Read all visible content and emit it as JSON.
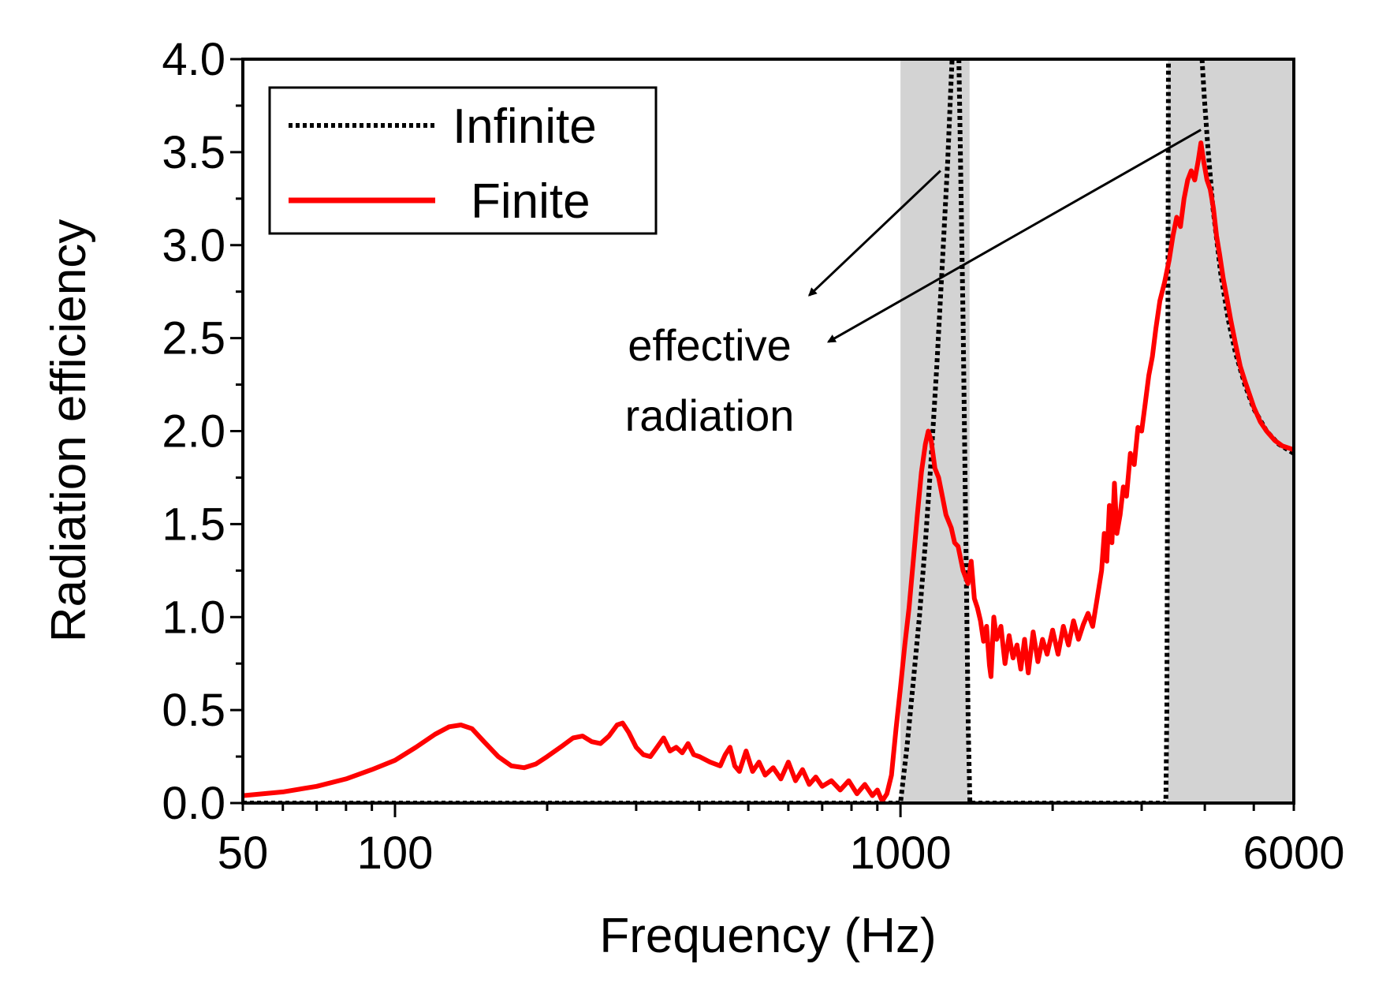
{
  "chart_data": {
    "type": "line",
    "title": "",
    "xlabel": "Frequency (Hz)",
    "ylabel": "Radiation efficiency",
    "xscale": "log",
    "xlim": [
      50,
      6000
    ],
    "ylim": [
      0,
      4.0
    ],
    "xticks": [
      {
        "value": 50,
        "label": "50"
      },
      {
        "value": 100,
        "label": "100"
      },
      {
        "value": 1000,
        "label": "1000"
      },
      {
        "value": 6000,
        "label": "6000"
      }
    ],
    "yticks": [
      {
        "value": 0.0,
        "label": "0.0"
      },
      {
        "value": 0.5,
        "label": "0.5"
      },
      {
        "value": 1.0,
        "label": "1.0"
      },
      {
        "value": 1.5,
        "label": "1.5"
      },
      {
        "value": 2.0,
        "label": "2.0"
      },
      {
        "value": 2.5,
        "label": "2.5"
      },
      {
        "value": 3.0,
        "label": "3.0"
      },
      {
        "value": 3.5,
        "label": "3.5"
      },
      {
        "value": 4.0,
        "label": "4.0"
      }
    ],
    "shaded_bands": [
      {
        "x0": 1000,
        "x1": 1370,
        "color": "#d3d3d3"
      },
      {
        "x0": 3380,
        "x1": 6000,
        "color": "#d3d3d3"
      }
    ],
    "legend": {
      "position": "top-left",
      "entries": [
        {
          "label": "Infinite",
          "series": "infinite"
        },
        {
          "label": "Finite",
          "series": "finite"
        }
      ]
    },
    "annotation": {
      "lines": [
        "effective",
        "radiation"
      ],
      "arrows": [
        {
          "from": [
            1200,
            3.4
          ],
          "to": [
            660,
            2.73
          ]
        },
        {
          "from": [
            3930,
            3.62
          ],
          "to": [
            720,
            2.48
          ]
        }
      ]
    },
    "series": [
      {
        "name": "Infinite",
        "id": "infinite",
        "color": "#000000",
        "style": "dotted",
        "segments": [
          [
            [
              50,
              0
            ],
            [
              1000,
              0
            ],
            [
              1030,
              0.3
            ],
            [
              1060,
              0.65
            ],
            [
              1090,
              1.0
            ],
            [
              1120,
              1.4
            ],
            [
              1150,
              1.85
            ],
            [
              1180,
              2.35
            ],
            [
              1210,
              2.9
            ],
            [
              1240,
              3.45
            ],
            [
              1260,
              3.9
            ],
            [
              1265,
              4.0
            ]
          ],
          [
            [
              1305,
              4.0
            ],
            [
              1330,
              2.6
            ],
            [
              1350,
              1.2
            ],
            [
              1362,
              0.4
            ],
            [
              1372,
              0
            ],
            [
              3350,
              0
            ],
            [
              3365,
              0.5
            ],
            [
              3378,
              2.0
            ],
            [
              3390,
              4.0
            ]
          ],
          [
            [
              3950,
              4.0
            ],
            [
              3990,
              3.8
            ],
            [
              4050,
              3.55
            ],
            [
              4150,
              3.2
            ],
            [
              4300,
              2.85
            ],
            [
              4450,
              2.6
            ],
            [
              4600,
              2.42
            ],
            [
              4800,
              2.25
            ],
            [
              5000,
              2.12
            ],
            [
              5300,
              2.0
            ],
            [
              5600,
              1.93
            ],
            [
              6000,
              1.88
            ]
          ]
        ]
      },
      {
        "name": "Finite",
        "id": "finite",
        "color": "#ff0000",
        "style": "solid",
        "points": [
          [
            50,
            0.04
          ],
          [
            60,
            0.06
          ],
          [
            70,
            0.09
          ],
          [
            80,
            0.13
          ],
          [
            90,
            0.18
          ],
          [
            100,
            0.23
          ],
          [
            110,
            0.3
          ],
          [
            120,
            0.37
          ],
          [
            128,
            0.41
          ],
          [
            135,
            0.42
          ],
          [
            142,
            0.4
          ],
          [
            150,
            0.33
          ],
          [
            160,
            0.25
          ],
          [
            170,
            0.2
          ],
          [
            180,
            0.19
          ],
          [
            190,
            0.21
          ],
          [
            200,
            0.25
          ],
          [
            215,
            0.31
          ],
          [
            225,
            0.35
          ],
          [
            235,
            0.36
          ],
          [
            245,
            0.33
          ],
          [
            255,
            0.32
          ],
          [
            265,
            0.36
          ],
          [
            275,
            0.42
          ],
          [
            282,
            0.43
          ],
          [
            290,
            0.38
          ],
          [
            300,
            0.3
          ],
          [
            310,
            0.26
          ],
          [
            320,
            0.25
          ],
          [
            330,
            0.3
          ],
          [
            340,
            0.35
          ],
          [
            350,
            0.28
          ],
          [
            360,
            0.3
          ],
          [
            370,
            0.27
          ],
          [
            380,
            0.32
          ],
          [
            390,
            0.26
          ],
          [
            400,
            0.25
          ],
          [
            420,
            0.22
          ],
          [
            440,
            0.2
          ],
          [
            450,
            0.26
          ],
          [
            460,
            0.3
          ],
          [
            470,
            0.2
          ],
          [
            480,
            0.17
          ],
          [
            495,
            0.28
          ],
          [
            510,
            0.17
          ],
          [
            525,
            0.22
          ],
          [
            540,
            0.15
          ],
          [
            560,
            0.19
          ],
          [
            580,
            0.13
          ],
          [
            600,
            0.22
          ],
          [
            620,
            0.12
          ],
          [
            640,
            0.18
          ],
          [
            660,
            0.1
          ],
          [
            680,
            0.14
          ],
          [
            700,
            0.09
          ],
          [
            730,
            0.12
          ],
          [
            760,
            0.07
          ],
          [
            790,
            0.12
          ],
          [
            820,
            0.05
          ],
          [
            850,
            0.1
          ],
          [
            880,
            0.04
          ],
          [
            900,
            0.07
          ],
          [
            920,
            0.01
          ],
          [
            940,
            0.05
          ],
          [
            960,
            0.15
          ],
          [
            980,
            0.4
          ],
          [
            1000,
            0.62
          ],
          [
            1020,
            0.85
          ],
          [
            1040,
            1.05
          ],
          [
            1060,
            1.3
          ],
          [
            1080,
            1.55
          ],
          [
            1100,
            1.78
          ],
          [
            1120,
            1.93
          ],
          [
            1135,
            2.0
          ],
          [
            1150,
            1.95
          ],
          [
            1170,
            1.8
          ],
          [
            1190,
            1.75
          ],
          [
            1210,
            1.65
          ],
          [
            1230,
            1.55
          ],
          [
            1260,
            1.48
          ],
          [
            1280,
            1.4
          ],
          [
            1300,
            1.38
          ],
          [
            1330,
            1.25
          ],
          [
            1360,
            1.18
          ],
          [
            1380,
            1.3
          ],
          [
            1400,
            1.1
          ],
          [
            1420,
            1.05
          ],
          [
            1440,
            0.98
          ],
          [
            1460,
            0.87
          ],
          [
            1480,
            0.95
          ],
          [
            1500,
            0.74
          ],
          [
            1510,
            0.68
          ],
          [
            1530,
            1.0
          ],
          [
            1550,
            0.88
          ],
          [
            1580,
            0.95
          ],
          [
            1610,
            0.75
          ],
          [
            1640,
            0.9
          ],
          [
            1670,
            0.78
          ],
          [
            1700,
            0.85
          ],
          [
            1730,
            0.72
          ],
          [
            1760,
            0.88
          ],
          [
            1790,
            0.7
          ],
          [
            1830,
            0.92
          ],
          [
            1870,
            0.76
          ],
          [
            1910,
            0.88
          ],
          [
            1950,
            0.8
          ],
          [
            2000,
            0.93
          ],
          [
            2050,
            0.8
          ],
          [
            2100,
            0.95
          ],
          [
            2150,
            0.85
          ],
          [
            2200,
            0.98
          ],
          [
            2250,
            0.88
          ],
          [
            2300,
            0.96
          ],
          [
            2350,
            1.02
          ],
          [
            2400,
            0.95
          ],
          [
            2450,
            1.1
          ],
          [
            2500,
            1.25
          ],
          [
            2530,
            1.45
          ],
          [
            2560,
            1.3
          ],
          [
            2590,
            1.6
          ],
          [
            2620,
            1.4
          ],
          [
            2650,
            1.72
          ],
          [
            2680,
            1.45
          ],
          [
            2720,
            1.55
          ],
          [
            2760,
            1.7
          ],
          [
            2800,
            1.65
          ],
          [
            2850,
            1.88
          ],
          [
            2900,
            1.82
          ],
          [
            2950,
            2.02
          ],
          [
            3000,
            2.0
          ],
          [
            3050,
            2.15
          ],
          [
            3100,
            2.3
          ],
          [
            3150,
            2.4
          ],
          [
            3200,
            2.55
          ],
          [
            3260,
            2.7
          ],
          [
            3330,
            2.8
          ],
          [
            3400,
            2.92
          ],
          [
            3460,
            3.05
          ],
          [
            3520,
            3.15
          ],
          [
            3580,
            3.1
          ],
          [
            3640,
            3.25
          ],
          [
            3700,
            3.35
          ],
          [
            3760,
            3.4
          ],
          [
            3820,
            3.35
          ],
          [
            3880,
            3.45
          ],
          [
            3930,
            3.55
          ],
          [
            3980,
            3.45
          ],
          [
            4040,
            3.35
          ],
          [
            4100,
            3.3
          ],
          [
            4160,
            3.2
          ],
          [
            4220,
            3.05
          ],
          [
            4280,
            2.95
          ],
          [
            4350,
            2.82
          ],
          [
            4420,
            2.72
          ],
          [
            4500,
            2.6
          ],
          [
            4600,
            2.47
          ],
          [
            4700,
            2.35
          ],
          [
            4800,
            2.27
          ],
          [
            4900,
            2.2
          ],
          [
            5000,
            2.13
          ],
          [
            5150,
            2.05
          ],
          [
            5300,
            2.0
          ],
          [
            5500,
            1.95
          ],
          [
            5700,
            1.92
          ],
          [
            6000,
            1.9
          ]
        ]
      }
    ]
  }
}
